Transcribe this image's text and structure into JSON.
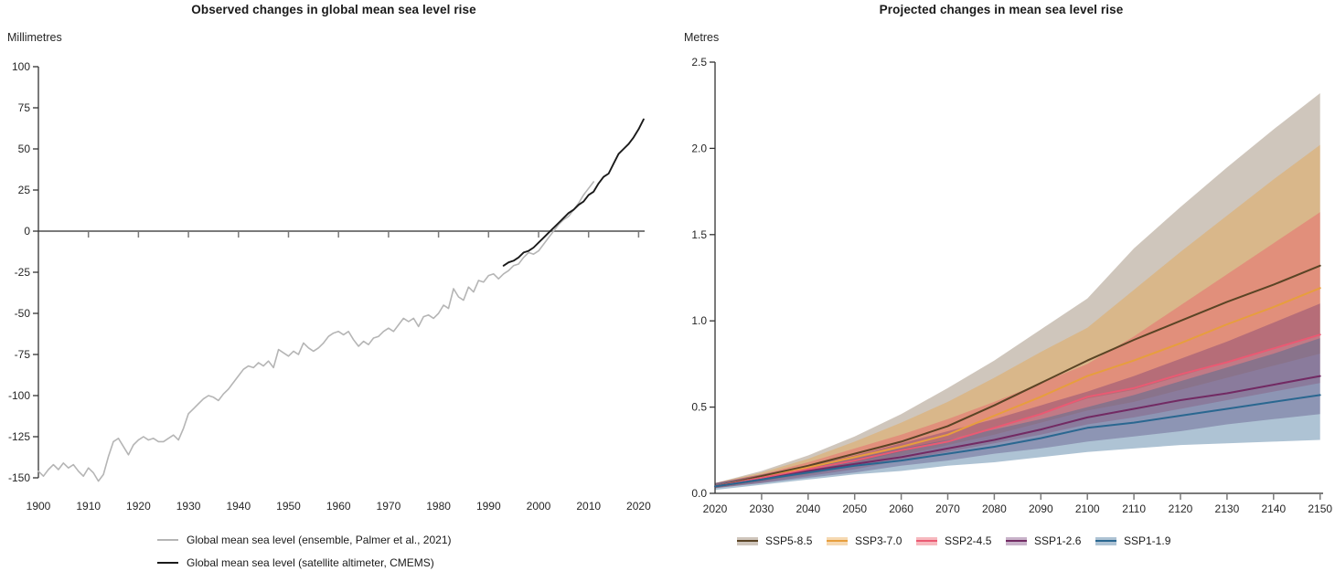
{
  "chart_data": [
    {
      "type": "line",
      "title": "Observed changes in global mean sea level rise",
      "xlabel": "",
      "ylabel": "Millimetres",
      "ylim": [
        -150,
        100
      ],
      "yticks": [
        100,
        75,
        50,
        25,
        0,
        -25,
        -50,
        -75,
        -100,
        -125,
        -150
      ],
      "xticks": [
        1900,
        1910,
        1920,
        1930,
        1940,
        1950,
        1960,
        1970,
        1980,
        1990,
        2000,
        2010,
        2020
      ],
      "grid": false,
      "legend_position": "bottom-left",
      "zero_line": true,
      "series": [
        {
          "name": "Global mean sea level (ensemble, Palmer et al., 2021)",
          "color": "#b5b5b5",
          "x_start": 1900,
          "x_step": 1,
          "values": [
            -146,
            -149,
            -145,
            -142,
            -145,
            -141,
            -144,
            -142,
            -146,
            -149,
            -144,
            -147,
            -152,
            -148,
            -137,
            -128,
            -126,
            -131,
            -136,
            -130,
            -127,
            -125,
            -127,
            -126,
            -128,
            -128,
            -126,
            -124,
            -127,
            -120,
            -111,
            -108,
            -105,
            -102,
            -100,
            -101,
            -103,
            -99,
            -96,
            -92,
            -88,
            -84,
            -82,
            -83,
            -80,
            -82,
            -79,
            -83,
            -72,
            -74,
            -76,
            -73,
            -75,
            -68,
            -71,
            -73,
            -71,
            -68,
            -64,
            -62,
            -61,
            -63,
            -61,
            -66,
            -70,
            -67,
            -69,
            -65,
            -64,
            -61,
            -59,
            -61,
            -57,
            -53,
            -55,
            -53,
            -58,
            -52,
            -51,
            -53,
            -50,
            -45,
            -47,
            -35,
            -40,
            -42,
            -34,
            -37,
            -30,
            -31,
            -27,
            -26,
            -29,
            -26,
            -24,
            -21,
            -20,
            -16,
            -13,
            -14,
            -12,
            -8,
            -4,
            0,
            4,
            7,
            9,
            13,
            17,
            22,
            26,
            30
          ]
        },
        {
          "name": "Global mean sea level (satellite altimeter, CMEMS)",
          "color": "#1a1a1a",
          "x_start": 1993,
          "x_step": 1,
          "values": [
            -21,
            -19,
            -18,
            -16,
            -13,
            -12,
            -10,
            -7,
            -4,
            -1,
            2,
            5,
            8,
            11,
            13,
            16,
            18,
            22,
            24,
            29,
            33,
            35,
            41,
            47,
            50,
            53,
            57,
            62,
            68
          ]
        }
      ]
    },
    {
      "type": "line",
      "title": "Projected changes in mean sea level rise",
      "xlabel": "",
      "ylabel": "Metres",
      "ylim": [
        0,
        2.5
      ],
      "ytick_labels": [
        "2.5",
        "2.0",
        "1.5",
        "1.0",
        "0.5",
        "0.0"
      ],
      "ytick_values": [
        2.5,
        2.0,
        1.5,
        1.0,
        0.5,
        0.0
      ],
      "xticks": [
        2020,
        2030,
        2040,
        2050,
        2060,
        2070,
        2080,
        2090,
        2100,
        2110,
        2120,
        2130,
        2140,
        2150
      ],
      "grid": false,
      "legend_position": "bottom",
      "zero_line": true,
      "x": [
        2020,
        2030,
        2040,
        2050,
        2060,
        2070,
        2080,
        2090,
        2100,
        2110,
        2120,
        2130,
        2140,
        2150
      ],
      "series": [
        {
          "name": "SSP5-8.5",
          "line_color": "#5a4425",
          "band_color": "rgba(140,118,95,0.42)",
          "median": [
            0.04,
            0.1,
            0.16,
            0.23,
            0.3,
            0.39,
            0.51,
            0.64,
            0.77,
            0.89,
            1.0,
            1.11,
            1.21,
            1.32
          ],
          "upper": [
            0.06,
            0.13,
            0.22,
            0.33,
            0.46,
            0.61,
            0.77,
            0.95,
            1.13,
            1.42,
            1.66,
            1.89,
            2.11,
            2.32
          ],
          "lower": [
            0.03,
            0.07,
            0.12,
            0.18,
            0.24,
            0.31,
            0.38,
            0.46,
            0.55,
            0.6,
            0.68,
            0.76,
            0.84,
            0.92
          ]
        },
        {
          "name": "SSP3-7.0",
          "line_color": "#e79e3d",
          "band_color": "rgba(233,161,62,0.40)",
          "median": [
            0.04,
            0.09,
            0.15,
            0.21,
            0.27,
            0.34,
            0.45,
            0.56,
            0.68,
            0.77,
            0.87,
            0.98,
            1.08,
            1.19
          ],
          "upper": [
            0.06,
            0.12,
            0.2,
            0.3,
            0.41,
            0.53,
            0.67,
            0.82,
            0.96,
            1.18,
            1.4,
            1.61,
            1.82,
            2.02
          ],
          "lower": [
            0.03,
            0.07,
            0.11,
            0.16,
            0.22,
            0.28,
            0.34,
            0.41,
            0.48,
            0.53,
            0.6,
            0.67,
            0.74,
            0.81
          ]
        },
        {
          "name": "SSP2-4.5",
          "line_color": "#ea5a73",
          "band_color": "rgba(237,88,103,0.42)",
          "median": [
            0.04,
            0.09,
            0.14,
            0.19,
            0.25,
            0.3,
            0.38,
            0.46,
            0.56,
            0.61,
            0.69,
            0.76,
            0.84,
            0.92
          ],
          "upper": [
            0.06,
            0.11,
            0.18,
            0.26,
            0.34,
            0.43,
            0.53,
            0.64,
            0.75,
            0.91,
            1.09,
            1.27,
            1.45,
            1.63
          ],
          "lower": [
            0.03,
            0.06,
            0.1,
            0.14,
            0.19,
            0.24,
            0.29,
            0.34,
            0.4,
            0.44,
            0.49,
            0.54,
            0.59,
            0.64
          ]
        },
        {
          "name": "SSP1-2.6",
          "line_color": "#722a63",
          "band_color": "rgba(114,56,116,0.38)",
          "median": [
            0.04,
            0.08,
            0.13,
            0.17,
            0.21,
            0.26,
            0.31,
            0.37,
            0.44,
            0.49,
            0.54,
            0.58,
            0.63,
            0.68
          ],
          "upper": [
            0.06,
            0.11,
            0.16,
            0.22,
            0.29,
            0.36,
            0.43,
            0.51,
            0.59,
            0.68,
            0.78,
            0.88,
            0.99,
            1.1
          ],
          "lower": [
            0.03,
            0.06,
            0.09,
            0.12,
            0.16,
            0.19,
            0.23,
            0.26,
            0.3,
            0.33,
            0.36,
            0.4,
            0.43,
            0.46
          ]
        },
        {
          "name": "SSP1-1.9",
          "line_color": "#2a6790",
          "band_color": "rgba(52,106,147,0.40)",
          "median": [
            0.04,
            0.08,
            0.12,
            0.16,
            0.19,
            0.23,
            0.27,
            0.32,
            0.38,
            0.41,
            0.45,
            0.49,
            0.53,
            0.57
          ],
          "upper": [
            0.06,
            0.1,
            0.15,
            0.2,
            0.26,
            0.31,
            0.37,
            0.43,
            0.5,
            0.57,
            0.65,
            0.73,
            0.81,
            0.9
          ],
          "lower": [
            0.02,
            0.05,
            0.08,
            0.11,
            0.13,
            0.16,
            0.18,
            0.21,
            0.24,
            0.26,
            0.28,
            0.29,
            0.3,
            0.31
          ]
        }
      ]
    }
  ]
}
